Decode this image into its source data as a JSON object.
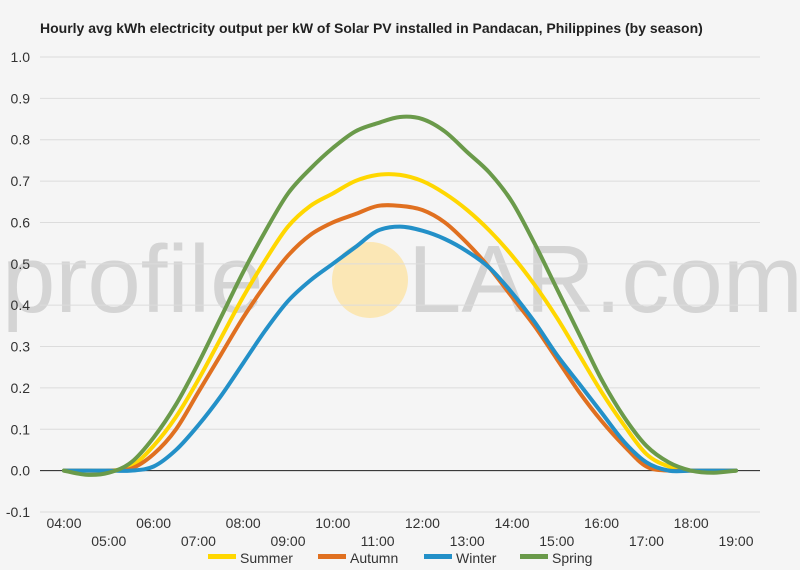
{
  "chart_data": {
    "type": "line",
    "title": "Hourly avg kWh electricity output per kW of Solar PV installed in Pandacan, Philippines (by season)",
    "watermark": {
      "left": "profile",
      "right": "LAR.com",
      "sun_color": "#fbe7b5"
    },
    "x_labels_upper": [
      "04:00",
      "06:00",
      "08:00",
      "10:00",
      "12:00",
      "14:00",
      "16:00",
      "18:00"
    ],
    "x_labels_lower": [
      "05:00",
      "07:00",
      "09:00",
      "11:00",
      "13:00",
      "15:00",
      "17:00",
      "19:00"
    ],
    "xlim": [
      4,
      19
    ],
    "ylim": [
      -0.1,
      1.0
    ],
    "yticks": [
      "-0.1",
      "0.0",
      "0.1",
      "0.2",
      "0.3",
      "0.4",
      "0.5",
      "0.6",
      "0.7",
      "0.8",
      "0.9",
      "1.0"
    ],
    "grid": true,
    "legend_position": "bottom",
    "series": [
      {
        "name": "Summer",
        "color": "#ffd700",
        "points": [
          [
            4,
            0
          ],
          [
            4.5,
            0
          ],
          [
            5,
            0
          ],
          [
            5.5,
            0.01
          ],
          [
            6,
            0.06
          ],
          [
            6.5,
            0.13
          ],
          [
            7,
            0.22
          ],
          [
            7.5,
            0.32
          ],
          [
            8,
            0.42
          ],
          [
            8.5,
            0.51
          ],
          [
            9,
            0.59
          ],
          [
            9.5,
            0.64
          ],
          [
            10,
            0.67
          ],
          [
            10.5,
            0.7
          ],
          [
            11,
            0.715
          ],
          [
            11.5,
            0.715
          ],
          [
            12,
            0.7
          ],
          [
            12.5,
            0.67
          ],
          [
            13,
            0.63
          ],
          [
            13.5,
            0.58
          ],
          [
            14,
            0.52
          ],
          [
            14.5,
            0.45
          ],
          [
            15,
            0.37
          ],
          [
            15.5,
            0.28
          ],
          [
            16,
            0.19
          ],
          [
            16.5,
            0.11
          ],
          [
            17,
            0.04
          ],
          [
            17.5,
            0.01
          ],
          [
            18,
            0
          ],
          [
            18.5,
            0
          ],
          [
            19,
            0
          ]
        ]
      },
      {
        "name": "Autumn",
        "color": "#e07020",
        "points": [
          [
            4,
            0
          ],
          [
            4.5,
            0
          ],
          [
            5,
            0
          ],
          [
            5.5,
            0.005
          ],
          [
            6,
            0.04
          ],
          [
            6.5,
            0.1
          ],
          [
            7,
            0.19
          ],
          [
            7.5,
            0.28
          ],
          [
            8,
            0.37
          ],
          [
            8.5,
            0.45
          ],
          [
            9,
            0.52
          ],
          [
            9.5,
            0.57
          ],
          [
            10,
            0.6
          ],
          [
            10.5,
            0.62
          ],
          [
            11,
            0.64
          ],
          [
            11.5,
            0.64
          ],
          [
            12,
            0.63
          ],
          [
            12.5,
            0.6
          ],
          [
            13,
            0.55
          ],
          [
            13.5,
            0.49
          ],
          [
            14,
            0.42
          ],
          [
            14.5,
            0.35
          ],
          [
            15,
            0.27
          ],
          [
            15.5,
            0.19
          ],
          [
            16,
            0.12
          ],
          [
            16.5,
            0.06
          ],
          [
            17,
            0.01
          ],
          [
            17.5,
            0
          ],
          [
            18,
            0
          ],
          [
            18.5,
            0
          ],
          [
            19,
            0
          ]
        ]
      },
      {
        "name": "Winter",
        "color": "#2390c8",
        "points": [
          [
            4,
            0
          ],
          [
            4.5,
            0
          ],
          [
            5,
            0
          ],
          [
            5.5,
            0
          ],
          [
            6,
            0.01
          ],
          [
            6.5,
            0.05
          ],
          [
            7,
            0.11
          ],
          [
            7.5,
            0.18
          ],
          [
            8,
            0.26
          ],
          [
            8.5,
            0.34
          ],
          [
            9,
            0.41
          ],
          [
            9.5,
            0.46
          ],
          [
            10,
            0.5
          ],
          [
            10.5,
            0.54
          ],
          [
            11,
            0.58
          ],
          [
            11.5,
            0.59
          ],
          [
            12,
            0.58
          ],
          [
            12.5,
            0.56
          ],
          [
            13,
            0.53
          ],
          [
            13.5,
            0.49
          ],
          [
            14,
            0.43
          ],
          [
            14.5,
            0.36
          ],
          [
            15,
            0.28
          ],
          [
            15.5,
            0.21
          ],
          [
            16,
            0.14
          ],
          [
            16.5,
            0.07
          ],
          [
            17,
            0.02
          ],
          [
            17.5,
            0
          ],
          [
            18,
            0
          ],
          [
            18.5,
            0
          ],
          [
            19,
            0
          ]
        ]
      },
      {
        "name": "Spring",
        "color": "#6a9a4a",
        "points": [
          [
            4,
            0
          ],
          [
            4.5,
            -0.01
          ],
          [
            5,
            -0.005
          ],
          [
            5.5,
            0.02
          ],
          [
            6,
            0.08
          ],
          [
            6.5,
            0.16
          ],
          [
            7,
            0.26
          ],
          [
            7.5,
            0.37
          ],
          [
            8,
            0.48
          ],
          [
            8.5,
            0.58
          ],
          [
            9,
            0.67
          ],
          [
            9.5,
            0.73
          ],
          [
            10,
            0.78
          ],
          [
            10.5,
            0.82
          ],
          [
            11,
            0.84
          ],
          [
            11.5,
            0.855
          ],
          [
            12,
            0.85
          ],
          [
            12.5,
            0.82
          ],
          [
            13,
            0.77
          ],
          [
            13.5,
            0.72
          ],
          [
            14,
            0.65
          ],
          [
            14.5,
            0.55
          ],
          [
            15,
            0.44
          ],
          [
            15.5,
            0.33
          ],
          [
            16,
            0.22
          ],
          [
            16.5,
            0.13
          ],
          [
            17,
            0.06
          ],
          [
            17.5,
            0.02
          ],
          [
            18,
            0
          ],
          [
            18.5,
            -0.005
          ],
          [
            19,
            0
          ]
        ]
      }
    ]
  }
}
